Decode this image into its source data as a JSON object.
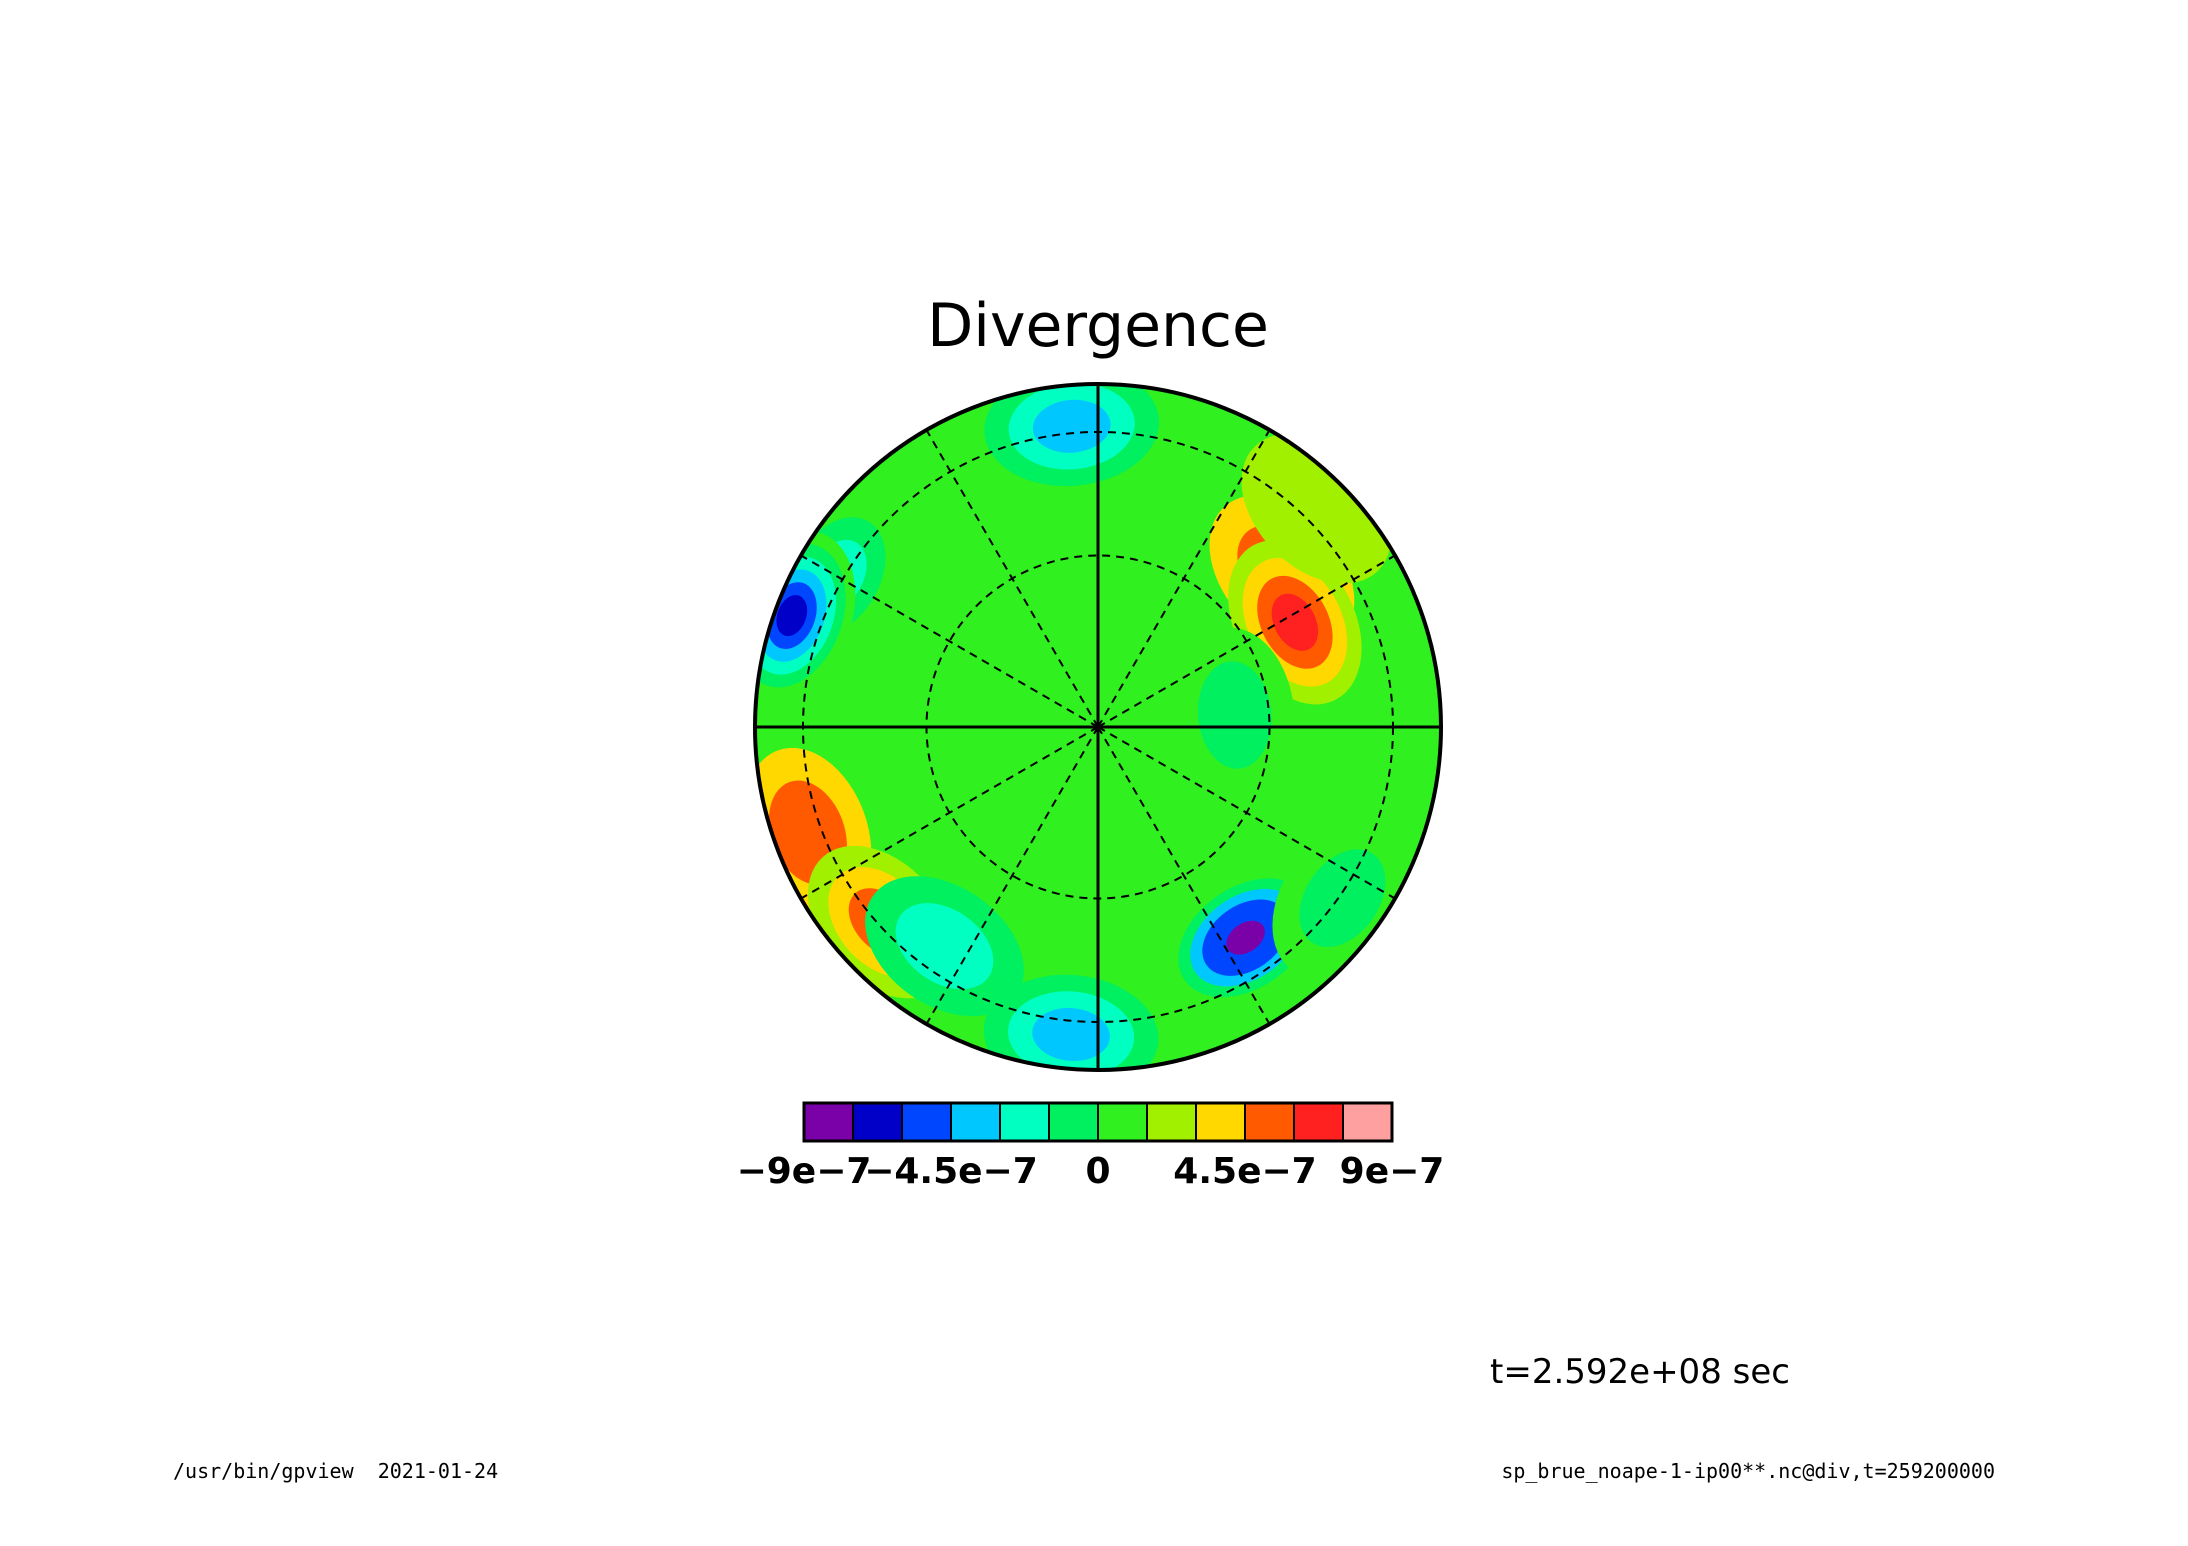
{
  "chart_data": {
    "type": "heatmap",
    "projection": "polar stereographic",
    "title": "Divergence",
    "time_label": "t=2.592e+08 sec",
    "colorbar": {
      "colors": [
        "#7a00a8",
        "#0000c8",
        "#0046ff",
        "#00c8ff",
        "#00ffc0",
        "#00f060",
        "#30f020",
        "#a0f000",
        "#ffd800",
        "#ff5a00",
        "#ff2020",
        "#ffa0a0"
      ],
      "range": [
        -9e-07,
        9e-07
      ],
      "tick_labels": [
        "−9e−7",
        "−4.5e−7",
        "0",
        "4.5e−7",
        "9e−7"
      ],
      "tick_values": [
        -9e-07,
        -4.5e-07,
        0,
        4.5e-07,
        9e-07
      ]
    },
    "background_level": 1.5e-07,
    "features": [
      {
        "lon": 12,
        "lat_ring": 0.92,
        "value": 1.4e-07
      },
      {
        "lon": 40,
        "lat_ring": 0.7,
        "value": 4.5e-07
      },
      {
        "lon": 28,
        "lat_ring": 0.65,
        "value": 6.8e-07
      },
      {
        "lon": 45,
        "lat_ring": 0.9,
        "value": 2.8e-07
      },
      {
        "lon": 95,
        "lat_ring": 0.88,
        "value": -3.5e-07
      },
      {
        "lon": 150,
        "lat_ring": 0.88,
        "value": -3e-07
      },
      {
        "lon": 160,
        "lat_ring": 0.95,
        "value": -7e-07
      },
      {
        "lon": 178,
        "lat_ring": 0.3,
        "value": 1.2e-07
      },
      {
        "lon": 200,
        "lat_ring": 0.9,
        "value": 5e-07
      },
      {
        "lon": 222,
        "lat_ring": 0.85,
        "value": 5.3e-07
      },
      {
        "lon": 235,
        "lat_ring": 0.78,
        "value": -1.8e-07
      },
      {
        "lon": 265,
        "lat_ring": 0.9,
        "value": -3.5e-07
      },
      {
        "lon": 305,
        "lat_ring": 0.75,
        "value": -7.5e-07
      },
      {
        "lon": 270,
        "lat_ring": 0.5,
        "value": 1.2e-07
      },
      {
        "lon": 325,
        "lat_ring": 0.87,
        "value": -1.5e-07
      },
      {
        "lon": 5,
        "lat_ring": 0.4,
        "value": -1.5e-07
      }
    ],
    "grid": {
      "circles": [
        0.5,
        0.86
      ],
      "meridian_step_deg": 30
    }
  },
  "footer": {
    "left": "/usr/bin/gpview  2021-01-24",
    "right": "sp_brue_noape-1-ip00**.nc@div,t=259200000"
  }
}
